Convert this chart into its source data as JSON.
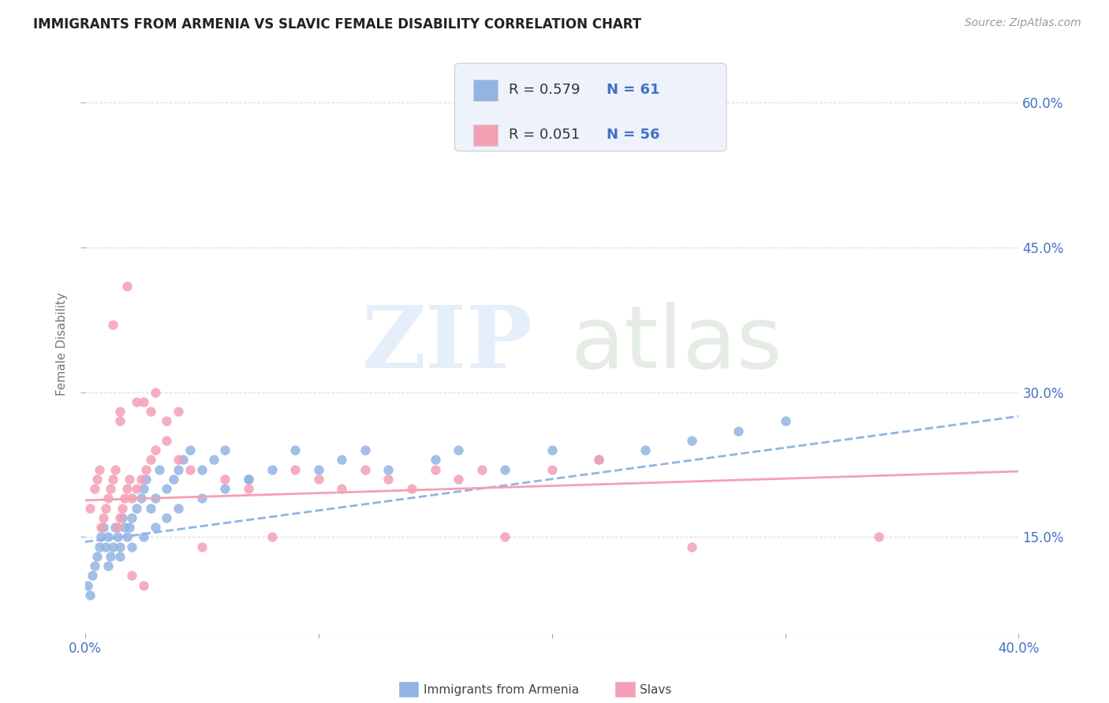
{
  "title": "IMMIGRANTS FROM ARMENIA VS SLAVIC FEMALE DISABILITY CORRELATION CHART",
  "source": "Source: ZipAtlas.com",
  "ylabel": "Female Disability",
  "yticks": [
    "15.0%",
    "30.0%",
    "45.0%",
    "60.0%"
  ],
  "ytick_vals": [
    0.15,
    0.3,
    0.45,
    0.6
  ],
  "xtick_vals": [
    0.0,
    0.1,
    0.2,
    0.3,
    0.4
  ],
  "xlim": [
    0.0,
    0.4
  ],
  "ylim": [
    0.05,
    0.65
  ],
  "legend_r1": "R = 0.579",
  "legend_n1": "N = 61",
  "legend_r2": "R = 0.051",
  "legend_n2": "N = 56",
  "color_armenia": "#92B4E3",
  "color_slavs": "#F4A0B4",
  "color_blue_text": "#4472C4",
  "background_color": "#ffffff",
  "grid_color": "#dddddd",
  "legend_box_color": "#eef2fa",
  "armenia_scatter_x": [
    0.001,
    0.002,
    0.003,
    0.004,
    0.005,
    0.006,
    0.007,
    0.008,
    0.009,
    0.01,
    0.011,
    0.012,
    0.013,
    0.014,
    0.015,
    0.016,
    0.017,
    0.018,
    0.019,
    0.02,
    0.022,
    0.024,
    0.025,
    0.026,
    0.028,
    0.03,
    0.032,
    0.035,
    0.038,
    0.04,
    0.042,
    0.045,
    0.05,
    0.055,
    0.06,
    0.07,
    0.08,
    0.09,
    0.1,
    0.11,
    0.12,
    0.13,
    0.15,
    0.16,
    0.18,
    0.2,
    0.22,
    0.24,
    0.26,
    0.28,
    0.3,
    0.01,
    0.015,
    0.02,
    0.025,
    0.03,
    0.035,
    0.04,
    0.05,
    0.06,
    0.07
  ],
  "armenia_scatter_y": [
    0.1,
    0.09,
    0.11,
    0.12,
    0.13,
    0.14,
    0.15,
    0.16,
    0.14,
    0.15,
    0.13,
    0.14,
    0.16,
    0.15,
    0.14,
    0.17,
    0.16,
    0.15,
    0.16,
    0.17,
    0.18,
    0.19,
    0.2,
    0.21,
    0.18,
    0.19,
    0.22,
    0.2,
    0.21,
    0.22,
    0.23,
    0.24,
    0.22,
    0.23,
    0.24,
    0.21,
    0.22,
    0.24,
    0.22,
    0.23,
    0.24,
    0.22,
    0.23,
    0.24,
    0.22,
    0.24,
    0.23,
    0.24,
    0.25,
    0.26,
    0.27,
    0.12,
    0.13,
    0.14,
    0.15,
    0.16,
    0.17,
    0.18,
    0.19,
    0.2,
    0.21
  ],
  "slavs_scatter_x": [
    0.002,
    0.004,
    0.005,
    0.006,
    0.007,
    0.008,
    0.009,
    0.01,
    0.011,
    0.012,
    0.013,
    0.014,
    0.015,
    0.016,
    0.017,
    0.018,
    0.019,
    0.02,
    0.022,
    0.024,
    0.026,
    0.028,
    0.03,
    0.035,
    0.04,
    0.045,
    0.05,
    0.06,
    0.07,
    0.08,
    0.09,
    0.1,
    0.11,
    0.12,
    0.13,
    0.14,
    0.15,
    0.16,
    0.17,
    0.18,
    0.2,
    0.22,
    0.26,
    0.34,
    0.015,
    0.025,
    0.03,
    0.035,
    0.04,
    0.012,
    0.018,
    0.022,
    0.028,
    0.015,
    0.02,
    0.025
  ],
  "slavs_scatter_y": [
    0.18,
    0.2,
    0.21,
    0.22,
    0.16,
    0.17,
    0.18,
    0.19,
    0.2,
    0.21,
    0.22,
    0.16,
    0.17,
    0.18,
    0.19,
    0.2,
    0.21,
    0.19,
    0.2,
    0.21,
    0.22,
    0.23,
    0.24,
    0.25,
    0.23,
    0.22,
    0.14,
    0.21,
    0.2,
    0.15,
    0.22,
    0.21,
    0.2,
    0.22,
    0.21,
    0.2,
    0.22,
    0.21,
    0.22,
    0.15,
    0.22,
    0.23,
    0.14,
    0.15,
    0.28,
    0.29,
    0.3,
    0.27,
    0.28,
    0.37,
    0.41,
    0.29,
    0.28,
    0.27,
    0.11,
    0.1
  ],
  "armenia_trend_x": [
    0.0,
    0.4
  ],
  "armenia_trend_y_start": 0.145,
  "armenia_trend_y_end": 0.275,
  "slavs_trend_x": [
    0.0,
    0.4
  ],
  "slavs_trend_y_start": 0.188,
  "slavs_trend_y_end": 0.218
}
